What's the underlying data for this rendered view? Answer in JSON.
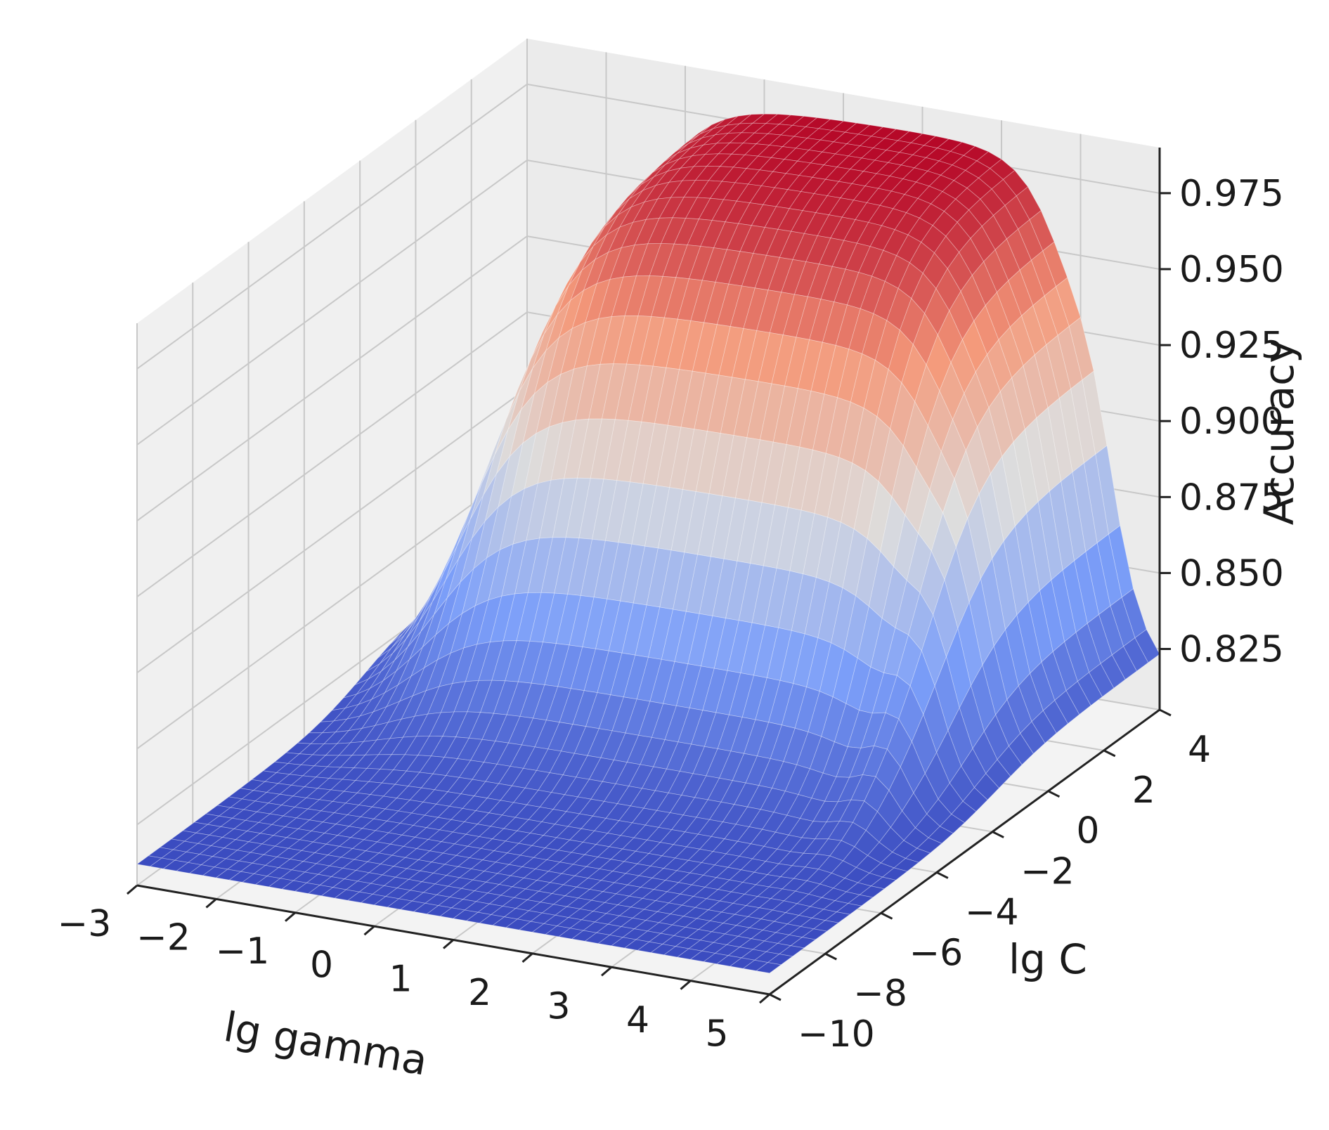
{
  "chart_data": {
    "type": "surface3d",
    "xlabel": "lg gamma",
    "ylabel": "lg C",
    "zlabel": "Accuracy",
    "x_ticks": [
      "−3",
      "−2",
      "−1",
      "0",
      "1",
      "2",
      "3",
      "4",
      "5"
    ],
    "y_ticks": [
      "−10",
      "−8",
      "−6",
      "−4",
      "−2",
      "0",
      "2",
      "4"
    ],
    "z_ticks": [
      "0.825",
      "0.850",
      "0.875",
      "0.900",
      "0.925",
      "0.950",
      "0.975"
    ],
    "xlim": [
      -3,
      5
    ],
    "ylim": [
      -10,
      4
    ],
    "zlim": [
      0.805,
      0.99
    ],
    "colormap": "coolwarm",
    "colors": {
      "low": "#3b4cc0",
      "mid": "#dddddd",
      "high": "#b40426",
      "pane": "#f2f2f2",
      "grid": "#c8c8c8"
    },
    "surface_description_points": [
      {
        "lg_gamma": -3,
        "lg_C": -10,
        "accuracy": 0.812
      },
      {
        "lg_gamma": -3,
        "lg_C": 4,
        "accuracy": 0.84
      },
      {
        "lg_gamma": -1,
        "lg_C": 4,
        "accuracy": 0.97
      },
      {
        "lg_gamma": 3,
        "lg_C": 4,
        "accuracy": 0.98
      },
      {
        "lg_gamma": 4,
        "lg_C": 4,
        "accuracy": 0.982
      },
      {
        "lg_gamma": 5,
        "lg_C": 4,
        "accuracy": 0.842
      },
      {
        "lg_gamma": 5,
        "lg_C": -10,
        "accuracy": 0.812
      },
      {
        "lg_gamma": 1,
        "lg_C": -10,
        "accuracy": 0.815
      }
    ]
  }
}
